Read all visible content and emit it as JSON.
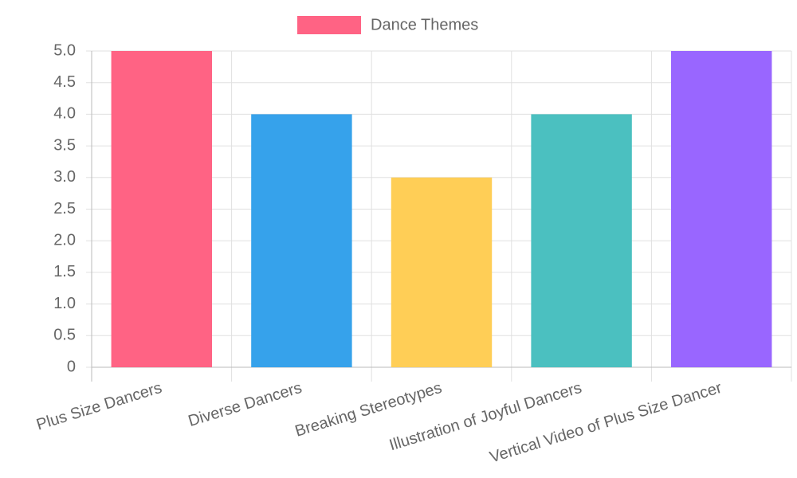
{
  "chart_data": {
    "type": "bar",
    "categories": [
      "Plus Size Dancers",
      "Diverse Dancers",
      "Breaking Stereotypes",
      "Illustration of Joyful Dancers",
      "Vertical Video of Plus Size Dancer"
    ],
    "series": [
      {
        "name": "Dance Themes",
        "values": [
          5,
          4,
          3,
          4,
          5
        ],
        "colors": [
          "#ff6384",
          "#36a2eb",
          "#ffce56",
          "#4bc0c0",
          "#9966ff"
        ]
      }
    ],
    "ylim": [
      0,
      5
    ],
    "yticks": [
      0,
      0.5,
      {
        "value": 1,
        "label": "1.0"
      },
      1.5,
      {
        "value": 2,
        "label": "2.0"
      },
      2.5,
      {
        "value": 3,
        "label": "3.0"
      },
      3.5,
      {
        "value": 4,
        "label": "4.0"
      },
      4.5,
      {
        "value": 5,
        "label": "5.0"
      }
    ],
    "grid": true,
    "legend": "top"
  }
}
